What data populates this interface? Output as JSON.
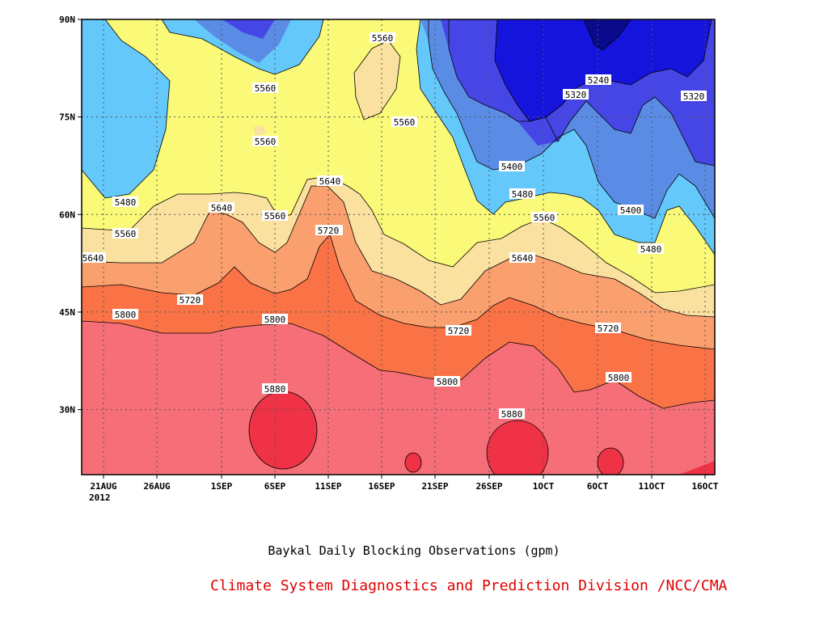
{
  "chart_data": {
    "type": "contour",
    "title": "Baykal Daily Blocking Observations (gpm)",
    "credit": "Climate System Diagnostics and Prediction Division /NCC/CMA",
    "x_axis": {
      "ticks": [
        "21AUG",
        "26AUG",
        "1SEP",
        "6SEP",
        "11SEP",
        "16SEP",
        "21SEP",
        "26SEP",
        "1OCT",
        "6OCT",
        "11OCT",
        "16OCT"
      ],
      "year_label": "2012",
      "range_days_from_label": [
        "21AUG",
        "16OCT"
      ]
    },
    "y_axis": {
      "ticks": [
        "30N",
        "45N",
        "60N",
        "75N",
        "90N"
      ],
      "tick_values": [
        30,
        45,
        60,
        75,
        90
      ],
      "range": [
        20,
        90
      ]
    },
    "levels": [
      5240,
      5320,
      5400,
      5480,
      5560,
      5640,
      5720,
      5800,
      5880
    ],
    "level_colors": [
      "#0a0a8c",
      "#1414dc",
      "#4646e6",
      "#5a8ce6",
      "#64c8fa",
      "#fafa78",
      "#fae1a0",
      "#fa9f6e",
      "#fa7346",
      "#f56e78",
      "#f03246"
    ],
    "contour_labels": [
      "5480",
      "5560",
      "5560",
      "5560",
      "5560",
      "5480",
      "5560",
      "5640",
      "5640",
      "5720",
      "5800",
      "5720",
      "5640",
      "5560",
      "5720",
      "5800",
      "5880",
      "5880",
      "5720",
      "5800",
      "5640",
      "5560",
      "5480",
      "5400",
      "5240",
      "5320",
      "5320",
      "5400",
      "5480",
      "5720",
      "5800"
    ],
    "grid": true
  },
  "caption": {
    "title": "Baykal Daily Blocking Observations (gpm)",
    "credit": "Climate System Diagnostics and Prediction Division /NCC/CMA",
    "credit_color": "#e00000"
  }
}
